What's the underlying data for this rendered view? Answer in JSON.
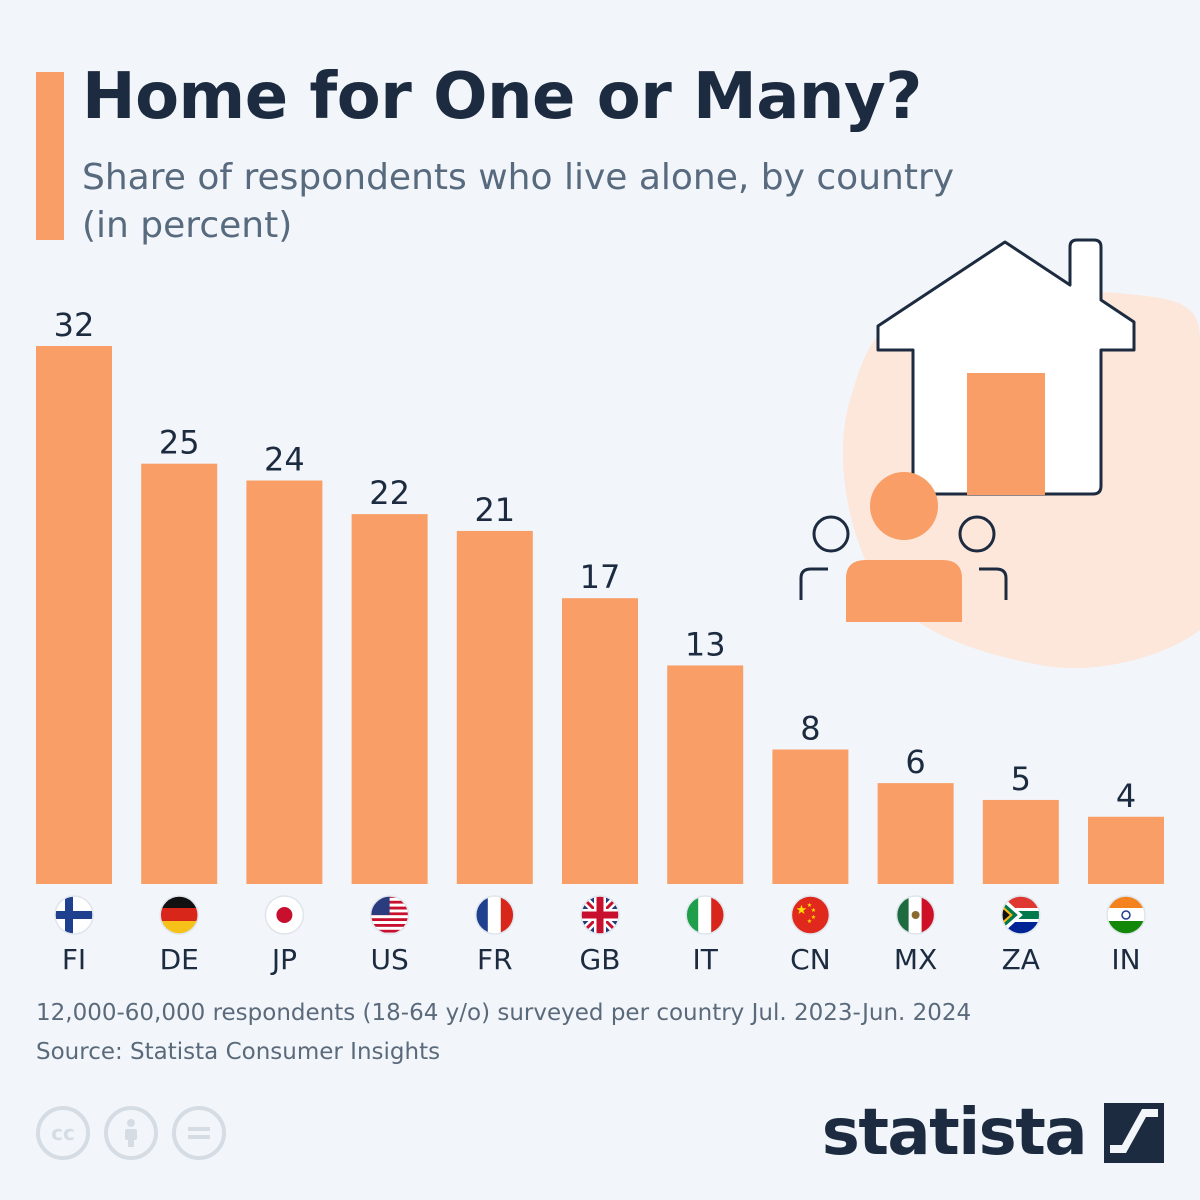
{
  "header": {
    "title": "Home for One or Many?",
    "subtitle": "Share of respondents who live alone, by country (in percent)"
  },
  "chart_data": {
    "type": "bar",
    "title": "Home for One or Many?",
    "subtitle": "Share of respondents who live alone, by country (in percent)",
    "categories": [
      "FI",
      "DE",
      "JP",
      "US",
      "FR",
      "GB",
      "IT",
      "CN",
      "MX",
      "ZA",
      "IN"
    ],
    "values": [
      32,
      25,
      24,
      22,
      21,
      17,
      13,
      8,
      6,
      5,
      4
    ],
    "xlabel": "",
    "ylabel": "",
    "ylim": [
      0,
      32
    ],
    "grid": false,
    "bar_color": "#f89e66"
  },
  "footer": {
    "note": "12,000-60,000 respondents (18-64 y/o) surveyed per country Jul. 2023-Jun. 2024",
    "source": "Source: Statista Consumer Insights",
    "license_icons": [
      "creative-commons-icon",
      "attribution-icon",
      "no-derivatives-icon"
    ],
    "logo_text": "statista"
  },
  "colors": {
    "background": "#f2f6fb",
    "accent": "#f89e66",
    "title": "#1c2b3f",
    "subtitle": "#586a7e"
  }
}
